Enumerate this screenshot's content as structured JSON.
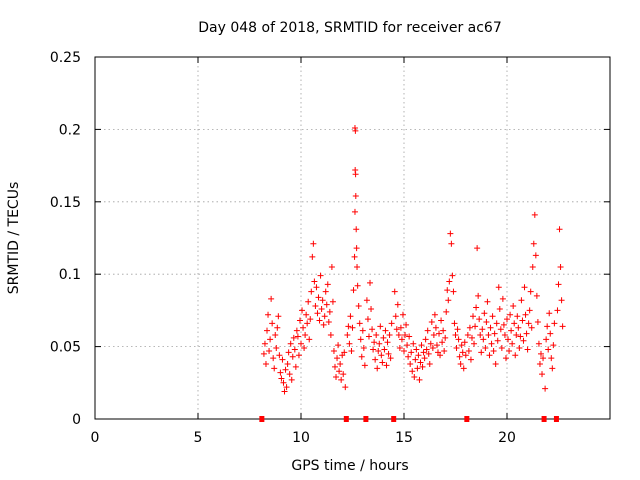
{
  "chart_data": {
    "type": "scatter",
    "title": "Day 048 of 2018, SRMTID for receiver ac67",
    "xlabel": "GPS time / hours",
    "ylabel": "SRMTID / TECUs",
    "xlim": [
      0,
      25
    ],
    "ylim": [
      0,
      0.25
    ],
    "xticks": [
      0,
      5,
      10,
      15,
      20
    ],
    "yticks": [
      0,
      0.05,
      0.1,
      0.15,
      0.2,
      0.25
    ],
    "xtick_labels": [
      "0",
      "5",
      "10",
      "15",
      "20"
    ],
    "ytick_labels": [
      "0",
      "0.05",
      "0.1",
      "0.15",
      "0.2",
      "0.25"
    ],
    "grid": true,
    "marker": "+",
    "color": "#ff0000",
    "gap_marker_color": "#ff0000",
    "gap_markers_x": [
      8.1,
      12.2,
      13.15,
      14.5,
      18.05,
      21.8,
      22.4
    ],
    "series": [
      {
        "name": "SRMTID",
        "points": [
          [
            8.2,
            0.045
          ],
          [
            8.25,
            0.052
          ],
          [
            8.3,
            0.038
          ],
          [
            8.35,
            0.061
          ],
          [
            8.4,
            0.072
          ],
          [
            8.45,
            0.047
          ],
          [
            8.5,
            0.055
          ],
          [
            8.55,
            0.083
          ],
          [
            8.6,
            0.066
          ],
          [
            8.65,
            0.042
          ],
          [
            8.7,
            0.035
          ],
          [
            8.75,
            0.058
          ],
          [
            8.8,
            0.049
          ],
          [
            8.85,
            0.063
          ],
          [
            8.9,
            0.071
          ],
          [
            8.95,
            0.044
          ],
          [
            9.0,
            0.032
          ],
          [
            9.05,
            0.028
          ],
          [
            9.1,
            0.041
          ],
          [
            9.15,
            0.025
          ],
          [
            9.2,
            0.019
          ],
          [
            9.25,
            0.034
          ],
          [
            9.3,
            0.022
          ],
          [
            9.35,
            0.038
          ],
          [
            9.4,
            0.046
          ],
          [
            9.45,
            0.031
          ],
          [
            9.5,
            0.052
          ],
          [
            9.55,
            0.027
          ],
          [
            9.6,
            0.043
          ],
          [
            9.65,
            0.056
          ],
          [
            9.7,
            0.048
          ],
          [
            9.75,
            0.036
          ],
          [
            9.8,
            0.061
          ],
          [
            9.85,
            0.057
          ],
          [
            9.9,
            0.044
          ],
          [
            9.95,
            0.068
          ],
          [
            10.0,
            0.052
          ],
          [
            10.05,
            0.075
          ],
          [
            10.1,
            0.063
          ],
          [
            10.15,
            0.049
          ],
          [
            10.2,
            0.058
          ],
          [
            10.25,
            0.072
          ],
          [
            10.3,
            0.066
          ],
          [
            10.35,
            0.081
          ],
          [
            10.4,
            0.055
          ],
          [
            10.45,
            0.069
          ],
          [
            10.5,
            0.088
          ],
          [
            10.55,
            0.112
          ],
          [
            10.6,
            0.121
          ],
          [
            10.65,
            0.095
          ],
          [
            10.7,
            0.078
          ],
          [
            10.75,
            0.091
          ],
          [
            10.8,
            0.073
          ],
          [
            10.85,
            0.084
          ],
          [
            10.9,
            0.068
          ],
          [
            10.95,
            0.099
          ],
          [
            11.0,
            0.076
          ],
          [
            11.05,
            0.082
          ],
          [
            11.1,
            0.065
          ],
          [
            11.15,
            0.071
          ],
          [
            11.2,
            0.088
          ],
          [
            11.25,
            0.079
          ],
          [
            11.3,
            0.093
          ],
          [
            11.35,
            0.067
          ],
          [
            11.4,
            0.074
          ],
          [
            11.45,
            0.058
          ],
          [
            11.5,
            0.105
          ],
          [
            11.55,
            0.081
          ],
          [
            11.6,
            0.047
          ],
          [
            11.65,
            0.036
          ],
          [
            11.7,
            0.029
          ],
          [
            11.75,
            0.042
          ],
          [
            11.8,
            0.051
          ],
          [
            11.85,
            0.033
          ],
          [
            11.9,
            0.038
          ],
          [
            11.95,
            0.027
          ],
          [
            12.0,
            0.044
          ],
          [
            12.05,
            0.031
          ],
          [
            12.1,
            0.046
          ],
          [
            12.15,
            0.022
          ],
          [
            12.25,
            0.058
          ],
          [
            12.3,
            0.064
          ],
          [
            12.35,
            0.052
          ],
          [
            12.4,
            0.071
          ],
          [
            12.45,
            0.047
          ],
          [
            12.5,
            0.063
          ],
          [
            12.55,
            0.089
          ],
          [
            12.6,
            0.112
          ],
          [
            12.62,
            0.201
          ],
          [
            12.64,
            0.199
          ],
          [
            12.63,
            0.172
          ],
          [
            12.65,
            0.169
          ],
          [
            12.66,
            0.154
          ],
          [
            12.62,
            0.143
          ],
          [
            12.68,
            0.131
          ],
          [
            12.7,
            0.118
          ],
          [
            12.72,
            0.105
          ],
          [
            12.75,
            0.092
          ],
          [
            12.8,
            0.078
          ],
          [
            12.85,
            0.066
          ],
          [
            12.9,
            0.055
          ],
          [
            12.95,
            0.043
          ],
          [
            13.0,
            0.061
          ],
          [
            13.05,
            0.049
          ],
          [
            13.1,
            0.037
          ],
          [
            13.2,
            0.082
          ],
          [
            13.25,
            0.069
          ],
          [
            13.3,
            0.057
          ],
          [
            13.35,
            0.094
          ],
          [
            13.4,
            0.076
          ],
          [
            13.45,
            0.062
          ],
          [
            13.5,
            0.048
          ],
          [
            13.55,
            0.053
          ],
          [
            13.6,
            0.041
          ],
          [
            13.65,
            0.058
          ],
          [
            13.7,
            0.035
          ],
          [
            13.75,
            0.047
          ],
          [
            13.8,
            0.052
          ],
          [
            13.85,
            0.064
          ],
          [
            13.9,
            0.044
          ],
          [
            13.95,
            0.039
          ],
          [
            14.0,
            0.056
          ],
          [
            14.05,
            0.048
          ],
          [
            14.1,
            0.061
          ],
          [
            14.15,
            0.037
          ],
          [
            14.2,
            0.053
          ],
          [
            14.25,
            0.045
          ],
          [
            14.3,
            0.058
          ],
          [
            14.35,
            0.042
          ],
          [
            14.4,
            0.066
          ],
          [
            14.55,
            0.088
          ],
          [
            14.6,
            0.071
          ],
          [
            14.65,
            0.062
          ],
          [
            14.7,
            0.079
          ],
          [
            14.75,
            0.058
          ],
          [
            14.8,
            0.049
          ],
          [
            14.85,
            0.063
          ],
          [
            14.9,
            0.055
          ],
          [
            14.95,
            0.072
          ],
          [
            15.0,
            0.047
          ],
          [
            15.05,
            0.058
          ],
          [
            15.1,
            0.065
          ],
          [
            15.15,
            0.051
          ],
          [
            15.2,
            0.043
          ],
          [
            15.25,
            0.057
          ],
          [
            15.3,
            0.038
          ],
          [
            15.35,
            0.046
          ],
          [
            15.4,
            0.033
          ],
          [
            15.45,
            0.052
          ],
          [
            15.5,
            0.029
          ],
          [
            15.55,
            0.041
          ],
          [
            15.6,
            0.048
          ],
          [
            15.65,
            0.035
          ],
          [
            15.7,
            0.044
          ],
          [
            15.75,
            0.027
          ],
          [
            15.8,
            0.039
          ],
          [
            15.85,
            0.051
          ],
          [
            15.9,
            0.036
          ],
          [
            15.95,
            0.046
          ],
          [
            16.0,
            0.042
          ],
          [
            16.05,
            0.055
          ],
          [
            16.1,
            0.048
          ],
          [
            16.15,
            0.061
          ],
          [
            16.2,
            0.045
          ],
          [
            16.25,
            0.038
          ],
          [
            16.3,
            0.052
          ],
          [
            16.35,
            0.067
          ],
          [
            16.4,
            0.049
          ],
          [
            16.45,
            0.058
          ],
          [
            16.5,
            0.072
          ],
          [
            16.55,
            0.063
          ],
          [
            16.6,
            0.051
          ],
          [
            16.65,
            0.046
          ],
          [
            16.7,
            0.059
          ],
          [
            16.75,
            0.044
          ],
          [
            16.8,
            0.068
          ],
          [
            16.85,
            0.053
          ],
          [
            16.9,
            0.061
          ],
          [
            16.95,
            0.047
          ],
          [
            17.0,
            0.056
          ],
          [
            17.05,
            0.074
          ],
          [
            17.1,
            0.089
          ],
          [
            17.15,
            0.082
          ],
          [
            17.2,
            0.095
          ],
          [
            17.25,
            0.128
          ],
          [
            17.3,
            0.121
          ],
          [
            17.35,
            0.099
          ],
          [
            17.4,
            0.088
          ],
          [
            17.45,
            0.066
          ],
          [
            17.5,
            0.058
          ],
          [
            17.55,
            0.049
          ],
          [
            17.6,
            0.062
          ],
          [
            17.65,
            0.055
          ],
          [
            17.7,
            0.043
          ],
          [
            17.75,
            0.038
          ],
          [
            17.8,
            0.051
          ],
          [
            17.85,
            0.046
          ],
          [
            17.9,
            0.035
          ],
          [
            17.95,
            0.053
          ],
          [
            18.0,
            0.044
          ],
          [
            18.1,
            0.058
          ],
          [
            18.15,
            0.047
          ],
          [
            18.2,
            0.063
          ],
          [
            18.25,
            0.041
          ],
          [
            18.3,
            0.056
          ],
          [
            18.35,
            0.071
          ],
          [
            18.4,
            0.052
          ],
          [
            18.45,
            0.064
          ],
          [
            18.5,
            0.077
          ],
          [
            18.55,
            0.118
          ],
          [
            18.6,
            0.085
          ],
          [
            18.65,
            0.069
          ],
          [
            18.7,
            0.058
          ],
          [
            18.75,
            0.046
          ],
          [
            18.8,
            0.062
          ],
          [
            18.85,
            0.055
          ],
          [
            18.9,
            0.073
          ],
          [
            18.95,
            0.049
          ],
          [
            19.0,
            0.067
          ],
          [
            19.05,
            0.081
          ],
          [
            19.1,
            0.058
          ],
          [
            19.15,
            0.044
          ],
          [
            19.2,
            0.063
          ],
          [
            19.25,
            0.052
          ],
          [
            19.3,
            0.071
          ],
          [
            19.35,
            0.047
          ],
          [
            19.4,
            0.059
          ],
          [
            19.45,
            0.038
          ],
          [
            19.5,
            0.066
          ],
          [
            19.55,
            0.054
          ],
          [
            19.6,
            0.091
          ],
          [
            19.65,
            0.076
          ],
          [
            19.7,
            0.062
          ],
          [
            19.75,
            0.049
          ],
          [
            19.8,
            0.083
          ],
          [
            19.85,
            0.065
          ],
          [
            19.9,
            0.058
          ],
          [
            19.95,
            0.042
          ],
          [
            20.0,
            0.069
          ],
          [
            20.05,
            0.055
          ],
          [
            20.1,
            0.047
          ],
          [
            20.15,
            0.072
          ],
          [
            20.2,
            0.061
          ],
          [
            20.25,
            0.052
          ],
          [
            20.3,
            0.078
          ],
          [
            20.35,
            0.066
          ],
          [
            20.4,
            0.044
          ],
          [
            20.45,
            0.058
          ],
          [
            20.5,
            0.071
          ],
          [
            20.55,
            0.063
          ],
          [
            20.6,
            0.049
          ],
          [
            20.65,
            0.057
          ],
          [
            20.7,
            0.082
          ],
          [
            20.75,
            0.068
          ],
          [
            20.8,
            0.054
          ],
          [
            20.85,
            0.091
          ],
          [
            20.9,
            0.072
          ],
          [
            20.95,
            0.059
          ],
          [
            21.0,
            0.048
          ],
          [
            21.05,
            0.066
          ],
          [
            21.1,
            0.075
          ],
          [
            21.15,
            0.088
          ],
          [
            21.2,
            0.063
          ],
          [
            21.25,
            0.105
          ],
          [
            21.3,
            0.121
          ],
          [
            21.35,
            0.141
          ],
          [
            21.4,
            0.113
          ],
          [
            21.45,
            0.085
          ],
          [
            21.5,
            0.067
          ],
          [
            21.55,
            0.052
          ],
          [
            21.6,
            0.038
          ],
          [
            21.65,
            0.045
          ],
          [
            21.7,
            0.031
          ],
          [
            21.75,
            0.042
          ],
          [
            21.85,
            0.021
          ],
          [
            21.9,
            0.055
          ],
          [
            21.95,
            0.064
          ],
          [
            22.0,
            0.048
          ],
          [
            22.05,
            0.073
          ],
          [
            22.1,
            0.059
          ],
          [
            22.15,
            0.042
          ],
          [
            22.2,
            0.035
          ],
          [
            22.25,
            0.051
          ],
          [
            22.3,
            0.066
          ],
          [
            22.45,
            0.075
          ],
          [
            22.5,
            0.093
          ],
          [
            22.55,
            0.131
          ],
          [
            22.6,
            0.105
          ],
          [
            22.65,
            0.082
          ],
          [
            22.7,
            0.064
          ]
        ]
      }
    ]
  }
}
